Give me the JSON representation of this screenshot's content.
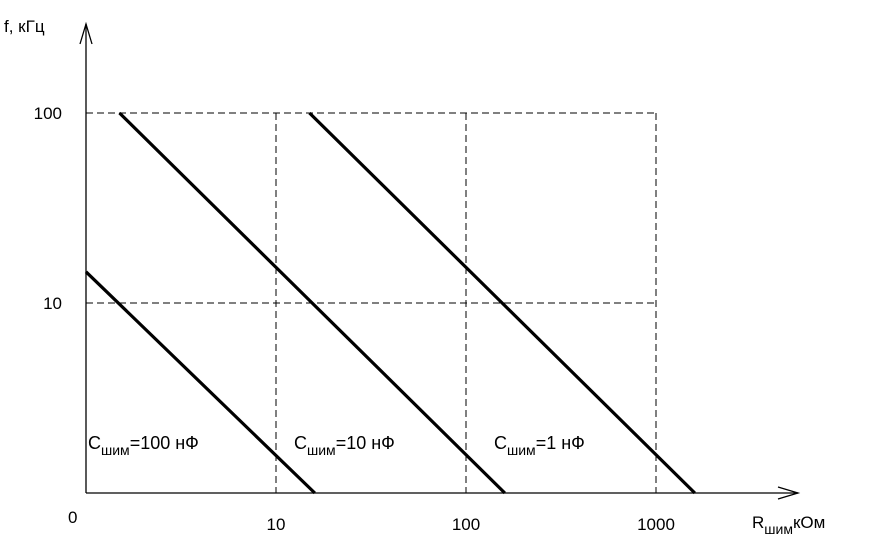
{
  "chart_data": {
    "type": "line",
    "xscale": "log",
    "yscale": "log",
    "xlabel": "R",
    "xlabel_sub": "шим",
    "xlabel_unit": "кОм",
    "ylabel": "f, кГц",
    "x_ticks": [
      "0",
      "10",
      "100",
      "1000"
    ],
    "y_ticks": [
      "10",
      "100"
    ],
    "grid": "dashed",
    "series": [
      {
        "name": "=100 нФ",
        "label_prefix": "C",
        "label_sub": "шим",
        "points": [
          [
            1,
            14.6
          ],
          [
            16,
            1
          ]
        ]
      },
      {
        "name": "=10 нФ",
        "label_prefix": "C",
        "label_sub": "шим",
        "points": [
          [
            1.5,
            100
          ],
          [
            160,
            1
          ]
        ]
      },
      {
        "name": "=1 нФ",
        "label_prefix": "C",
        "label_sub": "шим",
        "points": [
          [
            15,
            100
          ],
          [
            1600,
            1
          ]
        ]
      }
    ]
  }
}
